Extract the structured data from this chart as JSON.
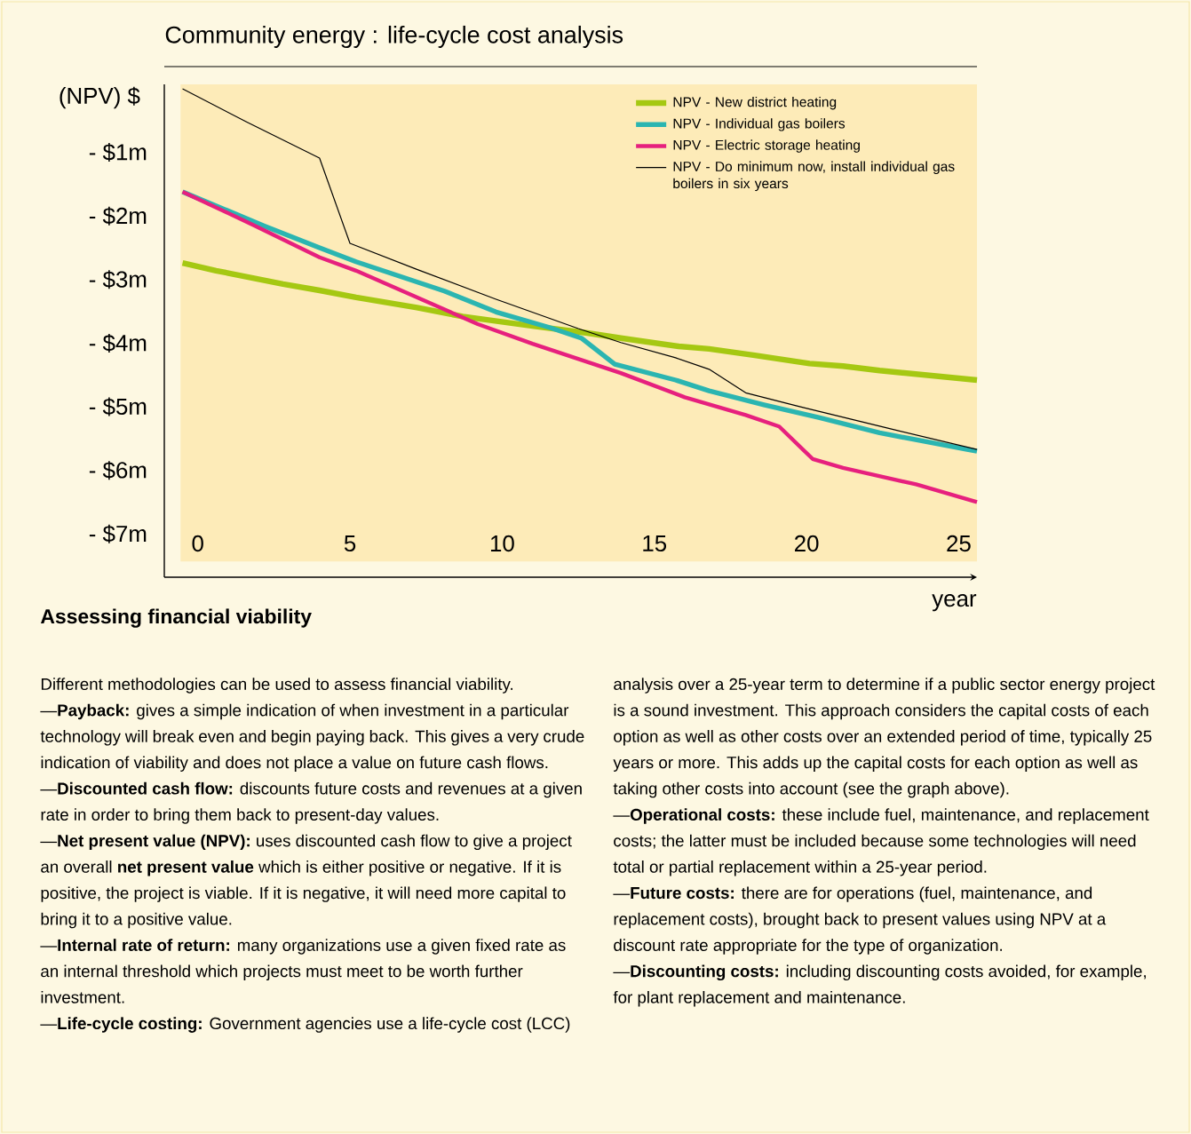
{
  "chart_data": {
    "type": "line",
    "title": "Community energy : life-cycle cost analysis",
    "xlabel": "year",
    "ylabel": "(NPV) $",
    "xlim": [
      -1.1,
      25.6
    ],
    "ylim": [
      -7.68,
      0.07
    ],
    "xticks": [
      0,
      5,
      10,
      15,
      20,
      25
    ],
    "yticks": [
      {
        "value": -1,
        "label": "- $1m"
      },
      {
        "value": -2,
        "label": "- $2m"
      },
      {
        "value": -3,
        "label": "- $3m"
      },
      {
        "value": -4,
        "label": "- $4m"
      },
      {
        "value": -5,
        "label": "- $5m"
      },
      {
        "value": -6,
        "label": "- $6m"
      },
      {
        "value": -7,
        "label": "- $7m"
      }
    ],
    "legend": "top right",
    "marker": "none",
    "line_style": "solid",
    "series": [
      {
        "name": "NPV - New district heating",
        "color": "#a5c812",
        "x": [
          -0.5,
          0.6,
          2.8,
          4.0,
          5.2,
          7.2,
          8.7,
          11.0,
          12.8,
          13.9,
          15.8,
          16.8,
          18.3,
          20.1,
          21.2,
          22.4,
          25.6
        ],
        "values": [
          -2.74,
          -2.86,
          -3.07,
          -3.17,
          -3.28,
          -3.44,
          -3.58,
          -3.73,
          -3.84,
          -3.92,
          -4.05,
          -4.09,
          -4.19,
          -4.32,
          -4.36,
          -4.43,
          -4.58
        ]
      },
      {
        "name": "NPV - Individual gas boilers",
        "color": "#2bb5b1",
        "x": [
          -0.5,
          2.2,
          4.0,
          5.2,
          8.1,
          9.8,
          11.6,
          12.6,
          13.7,
          15.7,
          16.8,
          18.6,
          20.4,
          22.4,
          25.6
        ],
        "values": [
          -1.62,
          -2.16,
          -2.5,
          -2.72,
          -3.18,
          -3.51,
          -3.76,
          -3.92,
          -4.33,
          -4.58,
          -4.75,
          -4.97,
          -5.17,
          -5.41,
          -5.7
        ]
      },
      {
        "name": "NPV - Electric storage heating",
        "color": "#e6207e",
        "x": [
          -0.5,
          1.6,
          4.0,
          5.2,
          7.2,
          9.2,
          11.0,
          13.9,
          16.0,
          18.0,
          19.1,
          20.2,
          21.2,
          23.6,
          25.6
        ],
        "values": [
          -1.62,
          -2.09,
          -2.65,
          -2.86,
          -3.28,
          -3.7,
          -4.01,
          -4.47,
          -4.85,
          -5.13,
          -5.31,
          -5.82,
          -5.96,
          -6.22,
          -6.5
        ]
      },
      {
        "name": "NPV - Do minimum now, install individual gas boilers in six years",
        "color": "#000000",
        "x": [
          -0.5,
          1.6,
          4.0,
          5.0,
          7.2,
          9.8,
          12.5,
          13.9,
          15.7,
          16.8,
          18.0,
          19.8,
          22.7,
          25.6
        ],
        "values": [
          0.0,
          -0.52,
          -1.09,
          -2.43,
          -2.84,
          -3.31,
          -3.77,
          -3.99,
          -4.23,
          -4.41,
          -4.78,
          -5.0,
          -5.34,
          -5.67
        ]
      }
    ],
    "annotations": [
      "Assessing financial viability",
      "Different methodologies can be used to assess financial viability.",
      "—**Payback:** gives a simple indication of when investment in a particular technology will break even and begin paying back. This gives a very crude indication of viability and does not place a value on future cash flows.",
      "—**Discounted cash flow:** discounts future costs and revenues at a given rate in order to bring them back to present-day values.",
      "—**Net present value (NPV):** uses discounted cash flow to give a project an overall **net present value** which is either positive or negative. If it is positive, the project is viable. If it is negative, it will need more capital to bring it to a positive value.",
      "—**Internal rate of return:** many organizations use a given fixed rate as an internal threshold which projects must meet to be worth further investment.",
      "—**Life-cycle costing:** Government agencies use a life-cycle cost (LCC) analysis over a 25-year term to determine if a public sector energy project is a sound investment. This approach considers the capital costs of each option as well as other costs over an extended period of time, typically 25 years or more.  This adds up the capital costs for each option as well as taking other costs into account (see the graph above).",
      "—**Operational costs:** these include fuel, maintenance, and replacement costs; the latter must be included because some technologies will need total or partial replacement within a 25-year period.",
      "—**Future costs:** there are for operations (fuel, maintenance, and replacement costs), brought back to present values using NPV at a discount rate appropriate for the type of organization.",
      "—**Discounting costs:** including discounting costs avoided, for example, for plant replacement and maintenance."
    ]
  }
}
